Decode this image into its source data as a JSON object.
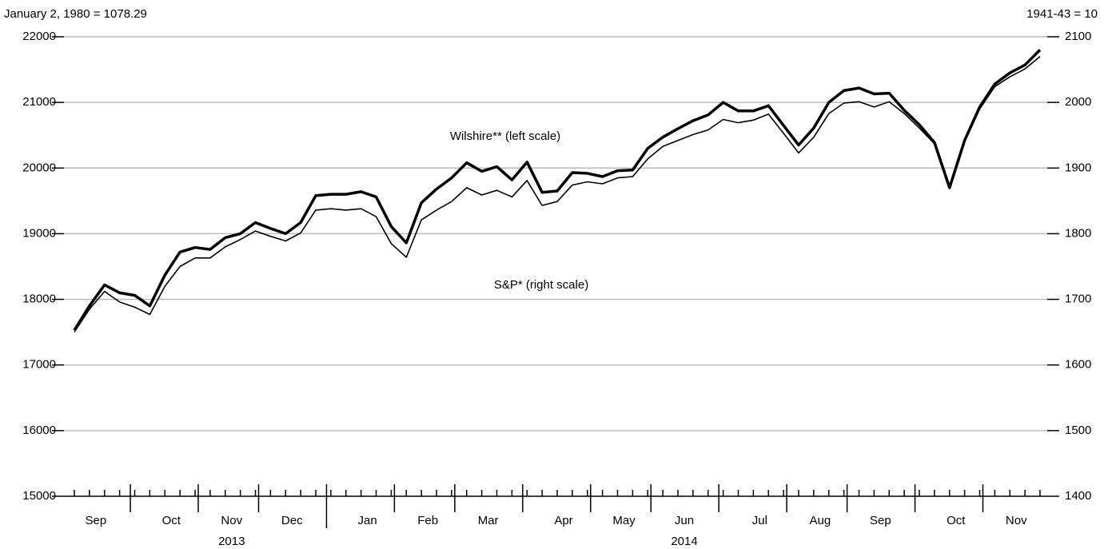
{
  "chart_data": {
    "type": "line",
    "ylabel": "January 2, 1980 = 1078.29",
    "y2label": "1941-43 = 10",
    "categories": [
      null,
      "Sep",
      null,
      null,
      null,
      null,
      "Oct",
      null,
      null,
      null,
      "Nov",
      null,
      null,
      null,
      "Dec",
      null,
      null,
      null,
      null,
      "Jan",
      null,
      null,
      null,
      "Feb",
      null,
      null,
      null,
      "Mar",
      null,
      null,
      null,
      null,
      "Apr",
      null,
      null,
      null,
      "May",
      null,
      null,
      null,
      "Jun",
      null,
      null,
      null,
      null,
      "Jul",
      null,
      null,
      null,
      "Aug",
      null,
      null,
      null,
      "Sep",
      null,
      null,
      null,
      null,
      "Oct",
      null,
      null,
      null,
      "Nov",
      null,
      null
    ],
    "years": [
      "2013",
      "2014"
    ],
    "series": [
      {
        "name": "Wilshire** (left scale)",
        "color": "#000000",
        "axis": "y",
        "values": [
          17530,
          17900,
          18220,
          18100,
          18060,
          17900,
          18370,
          18720,
          18790,
          18760,
          18940,
          19000,
          19170,
          19080,
          19000,
          19170,
          19580,
          19600,
          19600,
          19640,
          19560,
          19110,
          18860,
          19470,
          19680,
          19850,
          20080,
          19950,
          20020,
          19820,
          20090,
          19630,
          19650,
          19930,
          19920,
          19870,
          19960,
          19970,
          20300,
          20470,
          20600,
          20720,
          20810,
          21000,
          20870,
          20870,
          20950,
          20650,
          20350,
          20610,
          21000,
          21180,
          21220,
          21130,
          21140,
          20880,
          20660,
          20390,
          19700,
          20420,
          20930,
          21280,
          21450,
          21570,
          21800
        ]
      },
      {
        "name": "S&P* (right scale)",
        "color": "#000000",
        "axis": "y2",
        "values": [
          1650,
          1685,
          1712,
          1696,
          1688,
          1677,
          1720,
          1750,
          1763,
          1763,
          1780,
          1791,
          1804,
          1796,
          1789,
          1801,
          1836,
          1838,
          1836,
          1838,
          1826,
          1785,
          1764,
          1821,
          1836,
          1849,
          1870,
          1859,
          1866,
          1856,
          1881,
          1843,
          1849,
          1874,
          1879,
          1876,
          1885,
          1887,
          1914,
          1933,
          1942,
          1951,
          1958,
          1974,
          1969,
          1973,
          1982,
          1953,
          1923,
          1947,
          1983,
          1999,
          2001,
          1993,
          2001,
          1983,
          1961,
          1937,
          1870,
          1940,
          1990,
          2024,
          2039,
          2051,
          2070
        ]
      }
    ],
    "ylim": [
      15000,
      22000
    ],
    "yticks": [
      15000,
      16000,
      17000,
      18000,
      19000,
      20000,
      21000,
      22000
    ],
    "y2lim": [
      1400,
      2100
    ],
    "y2ticks": [
      1400,
      1500,
      1600,
      1700,
      1800,
      1900,
      2000,
      2100
    ],
    "grid": true
  }
}
